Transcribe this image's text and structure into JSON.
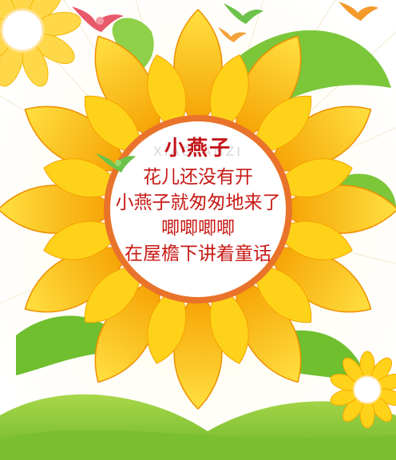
{
  "card": {
    "title": "小燕子",
    "watermark": "XIAOYANZI",
    "lines": [
      "花儿还没有开",
      "小燕子就匆匆地来了",
      "唧唧唧唧",
      "在屋檐下讲着童话"
    ]
  },
  "colors": {
    "petal_outer": "#f7a800",
    "petal_inner": "#ffd21a",
    "ring": "#e9732a",
    "text": "#c81a16",
    "leaf": "#6fbf2e",
    "hill": "#8fcd3c"
  },
  "icons": [
    "sunflower-icon",
    "swallow-icon",
    "small-sunflower-icon",
    "leaf-icon"
  ]
}
